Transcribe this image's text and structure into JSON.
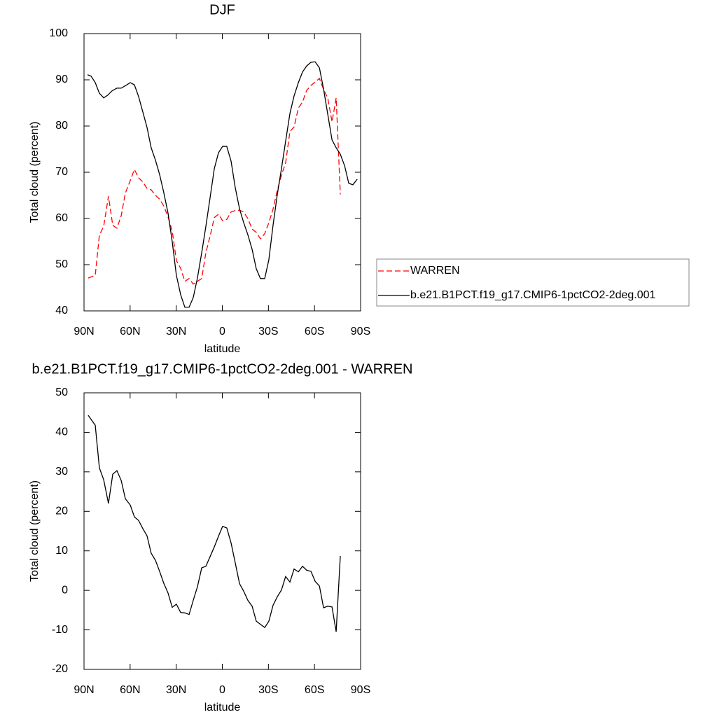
{
  "chart_data": [
    {
      "type": "line",
      "title": "DJF",
      "xlabel": "latitude",
      "ylabel": "Total cloud (percent)",
      "xlim": [
        90,
        -90
      ],
      "xticks": [
        {
          "value": 90,
          "label": "90N"
        },
        {
          "value": 60,
          "label": "60N"
        },
        {
          "value": 30,
          "label": "30N"
        },
        0,
        {
          "value": -30,
          "label": "30S"
        },
        {
          "value": -60,
          "label": "60S"
        },
        {
          "value": -90,
          "label": "90S"
        }
      ],
      "ylim": [
        40,
        100
      ],
      "yticks": [
        40,
        50,
        60,
        70,
        80,
        90,
        100
      ],
      "legend": "right",
      "series": [
        {
          "name": "WARREN",
          "color": "#ff0000",
          "dash": "dashed",
          "x": [
            87.3,
            82.7,
            80,
            77.2,
            74.1,
            71.3,
            68.6,
            65.8,
            63.1,
            59.9,
            57.2,
            54.5,
            51.7,
            49.0,
            46.3,
            43.5,
            40.8,
            38.1,
            35.3,
            32.6,
            29.9,
            27.1,
            24.4,
            21.6,
            18.9,
            16.2,
            13.4,
            10.7,
            8.0,
            5.2,
            2.5,
            -0.2,
            -2.9,
            -5.7,
            -8.4,
            -11.2,
            -13.9,
            -16.6,
            -19.4,
            -22.1,
            -24.8,
            -27.6,
            -30.3,
            -33.0,
            -35.8,
            -38.5,
            -41.2,
            -44.0,
            -46.7,
            -49.5,
            -52.2,
            -54.9,
            -57.7,
            -60.4,
            -63.2,
            -65.9,
            -68.6,
            -71.4,
            -74.1,
            -76.8
          ],
          "values": [
            47.1,
            47.7,
            56.4,
            58.3,
            64.8,
            58.5,
            57.9,
            60.6,
            65.5,
            68.2,
            70.6,
            68.8,
            67.9,
            66.5,
            66.2,
            65.0,
            64.2,
            62.7,
            60.3,
            57.3,
            50.9,
            49.2,
            46.4,
            47.0,
            45.8,
            46.4,
            47.0,
            52.6,
            56.1,
            60.2,
            60.9,
            59.5,
            59.8,
            61.4,
            61.7,
            61.8,
            61.4,
            60.0,
            57.7,
            57.0,
            55.6,
            56.7,
            59.1,
            62.0,
            66.1,
            69.4,
            72.0,
            78.8,
            79.8,
            83.9,
            85.2,
            87.7,
            88.8,
            89.5,
            90.3,
            87.9,
            86.1,
            80.9,
            86.1,
            65.2
          ]
        },
        {
          "name": "b.e21.B1PCT.f19_g17.CMIP6-1pctCO2-2deg.001",
          "color": "#000000",
          "dash": "solid",
          "x": [
            87.7,
            85.4,
            82.7,
            80,
            77.2,
            74.5,
            71.8,
            68.6,
            65.8,
            62.7,
            59.9,
            57.2,
            54.5,
            51.7,
            49.0,
            46.3,
            43.5,
            40.8,
            38.1,
            35.3,
            32.6,
            29.9,
            27.1,
            24.4,
            21.6,
            18.9,
            16.2,
            13.4,
            10.7,
            8.0,
            5.2,
            2.5,
            -0.2,
            -2.9,
            -5.7,
            -8.4,
            -11.2,
            -13.9,
            -16.6,
            -19.4,
            -22.1,
            -24.8,
            -27.6,
            -30.3,
            -33.0,
            -35.8,
            -38.5,
            -41.2,
            -44.0,
            -46.7,
            -49.5,
            -52.2,
            -54.9,
            -57.7,
            -60.4,
            -63.2,
            -65.9,
            -68.6,
            -71.4,
            -74.1,
            -76.8,
            -79.6,
            -82.3,
            -85.0,
            -87.8
          ],
          "values": [
            91.1,
            90.8,
            89.4,
            87.1,
            86.1,
            86.7,
            87.6,
            88.2,
            88.2,
            88.8,
            89.4,
            88.9,
            86.4,
            83.0,
            79.7,
            75.3,
            72.6,
            69.5,
            65.6,
            61.1,
            55.0,
            47.7,
            43.5,
            40.8,
            40.8,
            42.9,
            47.1,
            52.6,
            58.3,
            64.4,
            70.8,
            74.2,
            75.6,
            75.6,
            72.4,
            66.7,
            62.1,
            59.1,
            56.5,
            53.3,
            49.1,
            47.0,
            47.0,
            51.1,
            58.5,
            65.2,
            70.8,
            76.7,
            82.7,
            86.5,
            89.4,
            91.7,
            93.0,
            93.8,
            93.9,
            92.6,
            88.0,
            82.6,
            77.0,
            75.3,
            73.9,
            71.4,
            67.6,
            67.3,
            68.5
          ]
        }
      ]
    },
    {
      "type": "line",
      "title": "b.e21.B1PCT.f19_g17.CMIP6-1pctCO2-2deg.001 - WARREN",
      "xlabel": "latitude",
      "ylabel": "Total cloud (percent)",
      "xlim": [
        90,
        -90
      ],
      "xticks": [
        {
          "value": 90,
          "label": "90N"
        },
        {
          "value": 60,
          "label": "60N"
        },
        {
          "value": 30,
          "label": "30N"
        },
        0,
        {
          "value": -30,
          "label": "30S"
        },
        {
          "value": -60,
          "label": "60S"
        },
        {
          "value": -90,
          "label": "90S"
        }
      ],
      "ylim": [
        -20,
        50
      ],
      "yticks": [
        -20,
        -10,
        0,
        10,
        20,
        30,
        40,
        50
      ],
      "series": [
        {
          "color": "#000000",
          "dash": "solid",
          "x": [
            87.3,
            82.7,
            80,
            77.2,
            74.1,
            71.3,
            68.6,
            65.8,
            63.1,
            59.9,
            57.2,
            54.5,
            51.7,
            49.0,
            46.3,
            43.5,
            40.8,
            38.1,
            35.3,
            32.6,
            29.9,
            27.1,
            24.4,
            21.6,
            18.9,
            16.2,
            13.4,
            10.7,
            8.0,
            5.2,
            2.5,
            -0.2,
            -2.9,
            -5.7,
            -8.4,
            -11.2,
            -13.9,
            -16.6,
            -19.4,
            -22.1,
            -24.8,
            -27.6,
            -30.3,
            -33.0,
            -35.8,
            -38.5,
            -41.2,
            -44.0,
            -46.7,
            -49.5,
            -52.2,
            -54.9,
            -57.7,
            -60.4,
            -63.2,
            -65.9,
            -68.6,
            -71.4,
            -74.1,
            -76.8
          ],
          "values": [
            44.3,
            41.8,
            31.0,
            28.0,
            22.0,
            29.4,
            30.3,
            27.8,
            23.2,
            21.6,
            18.6,
            17.7,
            15.6,
            13.8,
            9.4,
            7.6,
            4.8,
            1.8,
            -0.7,
            -4.3,
            -3.5,
            -5.6,
            -5.7,
            -6.1,
            -2.5,
            0.9,
            5.7,
            6.1,
            8.5,
            11.0,
            13.7,
            16.2,
            15.8,
            12.0,
            7.0,
            1.7,
            -0.2,
            -2.5,
            -4.0,
            -7.8,
            -8.6,
            -9.4,
            -7.8,
            -3.8,
            -1.6,
            0.1,
            3.5,
            2.1,
            5.4,
            4.7,
            6.1,
            5.1,
            4.8,
            2.3,
            1.1,
            -4.4,
            -4.0,
            -4.2,
            -10.5,
            8.7
          ]
        }
      ]
    }
  ]
}
